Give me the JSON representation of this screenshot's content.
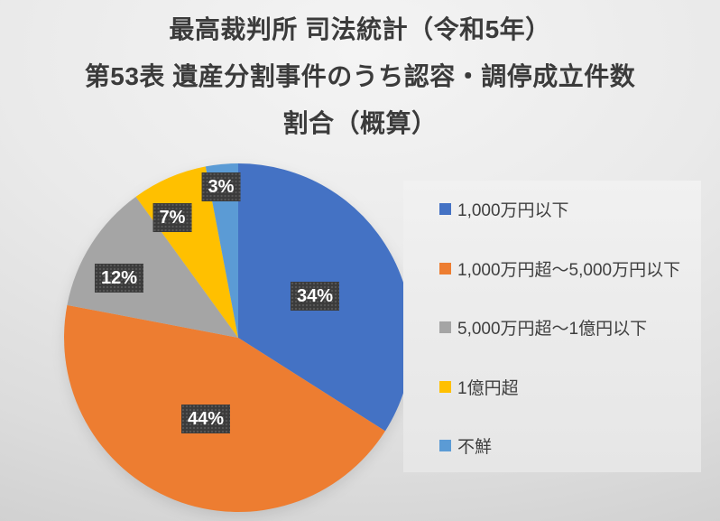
{
  "title": {
    "lines": [
      "最高裁判所 司法統計（令和5年）",
      "第53表 遺産分割事件のうち認容・調停成立件数",
      "割合（概算）"
    ]
  },
  "chart_data": {
    "type": "pie",
    "title": "最高裁判所 司法統計（令和5年） 第53表 遺産分割事件のうち認容・調停成立件数 割合（概算）",
    "unit": "%",
    "start_angle_deg": 0,
    "direction": "clockwise",
    "legend_position": "right",
    "grid": false,
    "slices": [
      {
        "label": "1,000万円以下",
        "value": 34,
        "data_label": "34%",
        "color": "#4472C4"
      },
      {
        "label": "1,000万円超〜5,000万円以下",
        "value": 44,
        "data_label": "44%",
        "color": "#ED7D31"
      },
      {
        "label": "5,000万円超〜1億円以下",
        "value": 12,
        "data_label": "12%",
        "color": "#A5A5A5"
      },
      {
        "label": "1億円超",
        "value": 7,
        "data_label": "7%",
        "color": "#FFC000"
      },
      {
        "label": "不鮮",
        "value": 3,
        "data_label": "3%",
        "color": "#5B9BD5"
      }
    ]
  }
}
